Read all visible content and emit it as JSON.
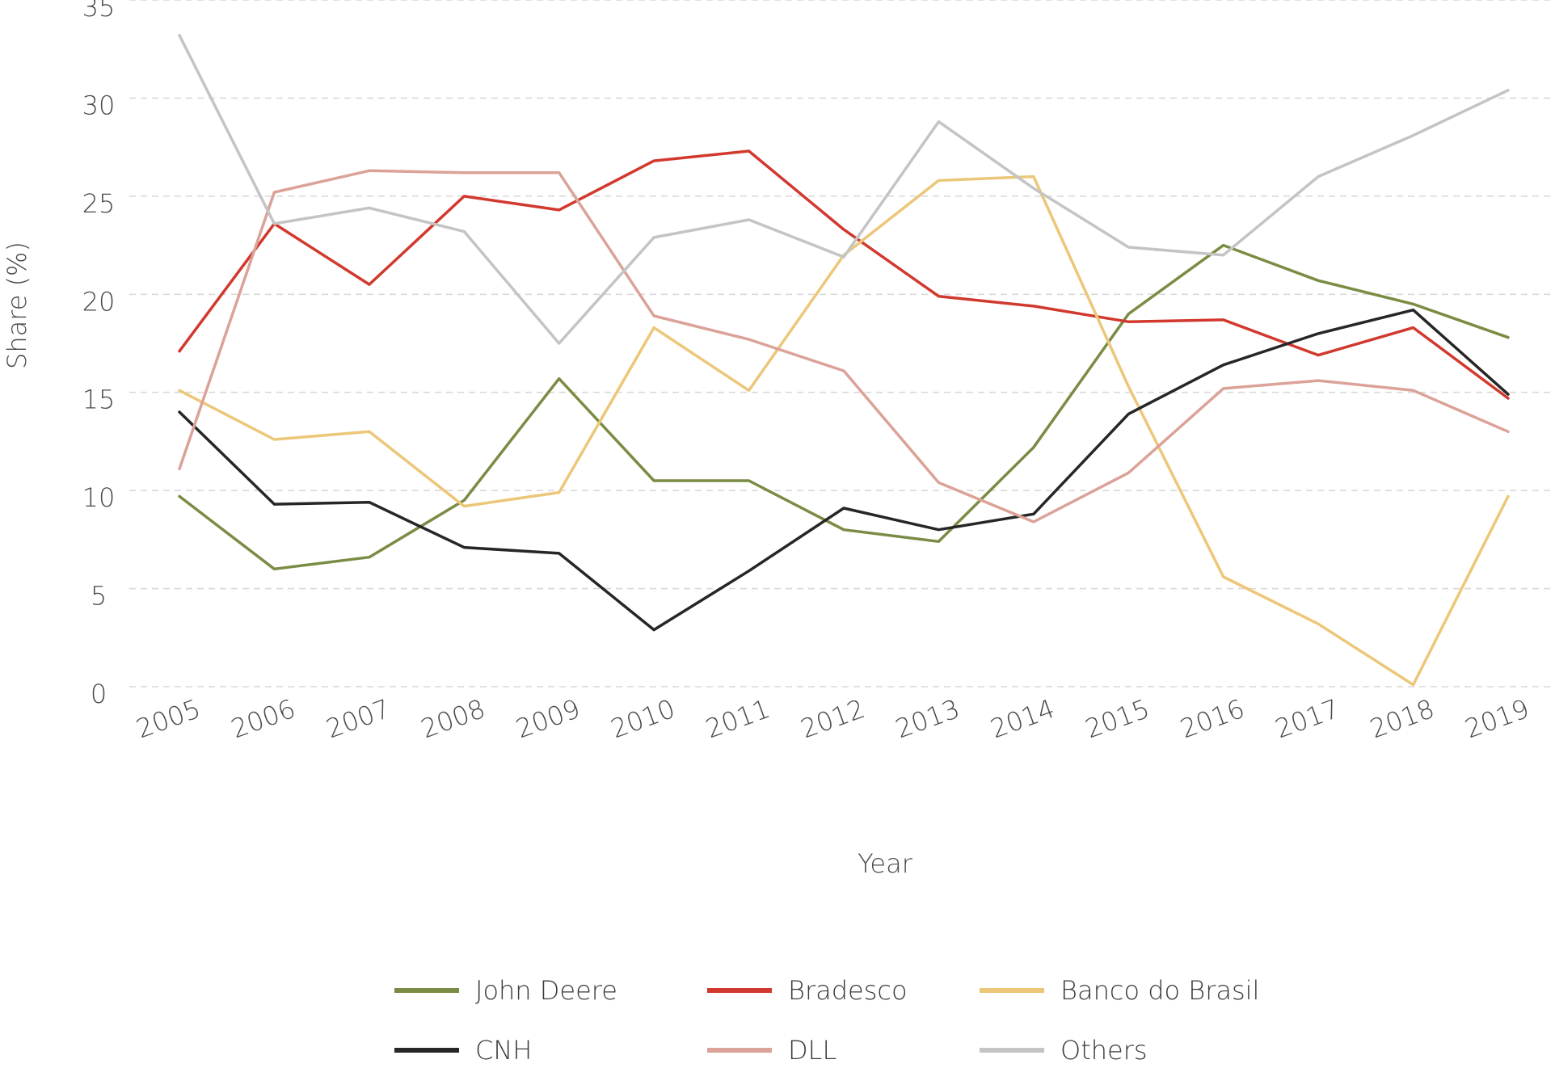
{
  "chart_data": {
    "type": "line",
    "title": "",
    "xlabel": "Year",
    "ylabel": "Share (%)",
    "ylim": [
      0,
      35
    ],
    "yticks": [
      0,
      5,
      10,
      15,
      20,
      25,
      30,
      35
    ],
    "grid": true,
    "legend_position": "bottom",
    "x": [
      "2005",
      "2006",
      "2007",
      "2008",
      "2009",
      "2010",
      "2011",
      "2012",
      "2013",
      "2014",
      "2015",
      "2016",
      "2017",
      "2018",
      "2019"
    ],
    "series": [
      {
        "name": "John Deere",
        "color": "#7a8c44",
        "values": [
          9.7,
          6.0,
          6.6,
          9.5,
          15.7,
          10.5,
          10.5,
          8.0,
          7.4,
          12.2,
          19.0,
          22.5,
          20.7,
          19.5,
          17.8
        ]
      },
      {
        "name": "Bradesco",
        "color": "#d2392e",
        "values": [
          17.1,
          23.6,
          20.5,
          25.0,
          24.3,
          26.8,
          27.3,
          23.3,
          19.9,
          19.4,
          18.6,
          18.7,
          16.9,
          18.3,
          14.7
        ]
      },
      {
        "name": "Banco do Brasil",
        "color": "#ecc779",
        "values": [
          15.1,
          12.6,
          13.0,
          9.2,
          9.9,
          18.3,
          15.1,
          22.0,
          25.8,
          26.0,
          15.3,
          5.6,
          3.2,
          0.1,
          9.7
        ]
      },
      {
        "name": "CNH",
        "color": "#262626",
        "values": [
          14.0,
          9.3,
          9.4,
          7.1,
          6.8,
          2.9,
          5.9,
          9.1,
          8.0,
          8.8,
          13.9,
          16.4,
          18.0,
          19.2,
          14.9
        ]
      },
      {
        "name": "DLL",
        "color": "#dba298",
        "values": [
          11.1,
          25.2,
          26.3,
          26.2,
          26.2,
          18.9,
          17.7,
          16.1,
          10.4,
          8.4,
          10.9,
          15.2,
          15.6,
          15.1,
          13.0
        ]
      },
      {
        "name": "Others",
        "color": "#c4c4c4",
        "values": [
          33.2,
          23.6,
          24.4,
          23.2,
          17.5,
          22.9,
          23.8,
          21.9,
          28.8,
          25.4,
          22.4,
          22.0,
          26.0,
          28.1,
          30.4
        ]
      }
    ]
  }
}
